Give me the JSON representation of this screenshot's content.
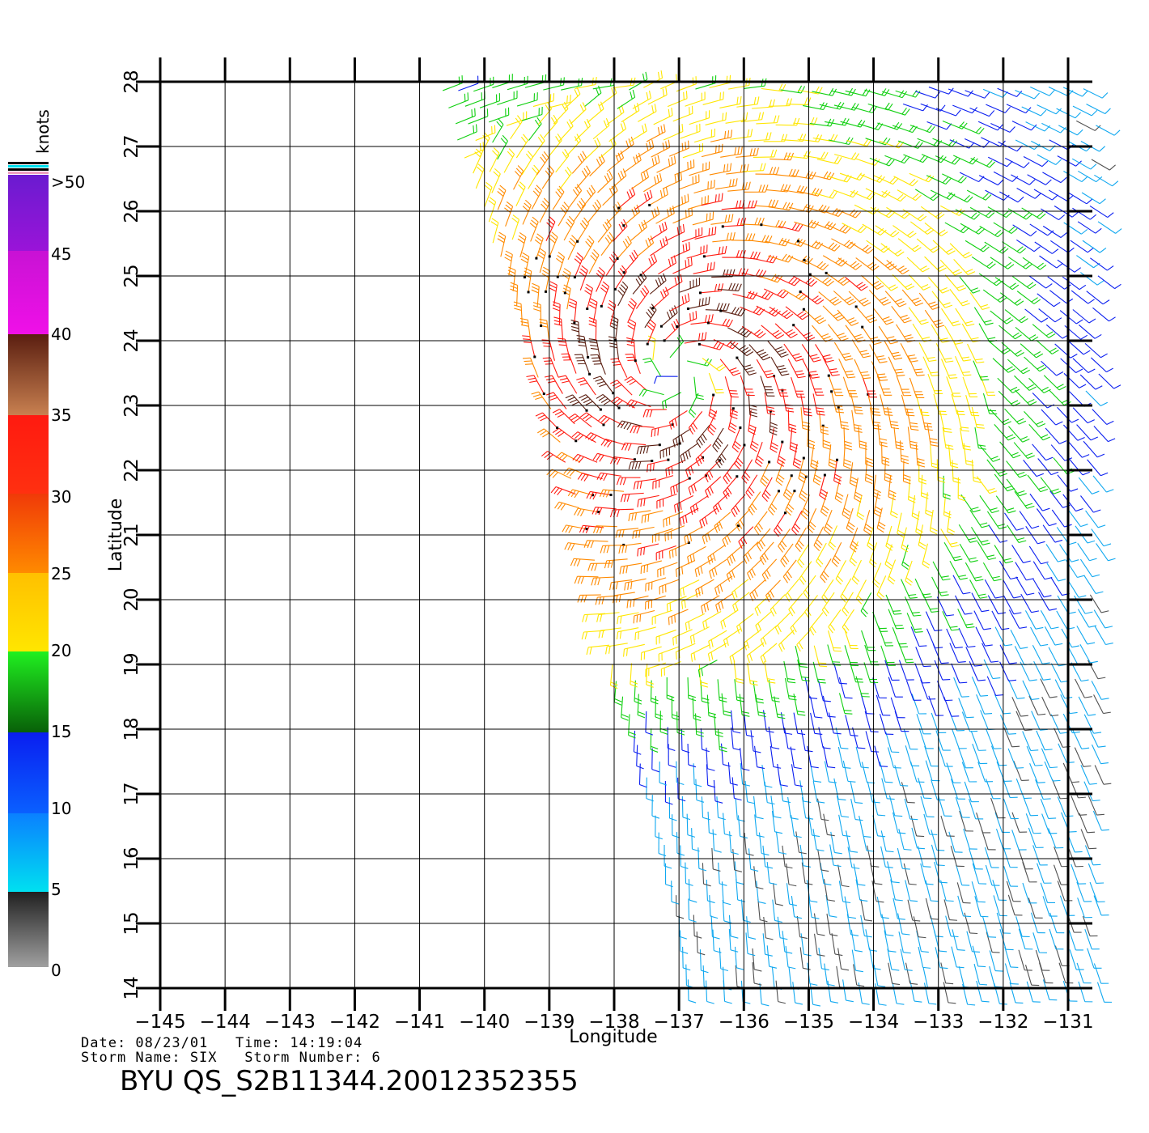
{
  "plot": {
    "lon_min": -145,
    "lon_max": -130.6,
    "lat_min": 14,
    "lat_max": 28,
    "xlabel": "Longitude",
    "ylabel": "Latitude",
    "lon_ticks": [
      -145,
      -144,
      -143,
      -142,
      -141,
      -140,
      -139,
      -138,
      -137,
      -136,
      -135,
      -134,
      -133,
      -132,
      -131
    ],
    "lat_ticks": [
      14,
      15,
      16,
      17,
      18,
      19,
      20,
      21,
      22,
      23,
      24,
      25,
      26,
      27,
      28
    ],
    "grid": true
  },
  "colorbar": {
    "unit": "knots",
    "labels": [
      ">50",
      "45",
      "40",
      "35",
      "30",
      "25",
      "20",
      "15",
      "10",
      "5",
      "0"
    ],
    "colors": {
      "purple": "#6a1bd0",
      "magenta": "#f010e8",
      "brown": "#5a1e10",
      "red": "#ff1a10",
      "orange": "#ff8a00",
      "yellow": "#ffe600",
      "green": "#10d010",
      "blue": "#0a1ef0",
      "cyan": "#00e0f0",
      "gray": "#505050"
    }
  },
  "wind_field": {
    "storm_center": {
      "lon": -137.0,
      "lat": 23.5
    },
    "swath_west_edge": [
      [
        -140.7,
        28
      ],
      [
        -140,
        26
      ],
      [
        -139.3,
        24
      ],
      [
        -138.4,
        21
      ],
      [
        -138,
        19
      ],
      [
        -137.3,
        16.5
      ],
      [
        -136.8,
        14
      ]
    ]
  },
  "info": {
    "date_line": "Date: 08/23/01   Time: 14:19:04",
    "storm_line": "Storm Name: SIX   Storm Number: 6",
    "title": "BYU  QS_S2B11344.20012352355"
  }
}
